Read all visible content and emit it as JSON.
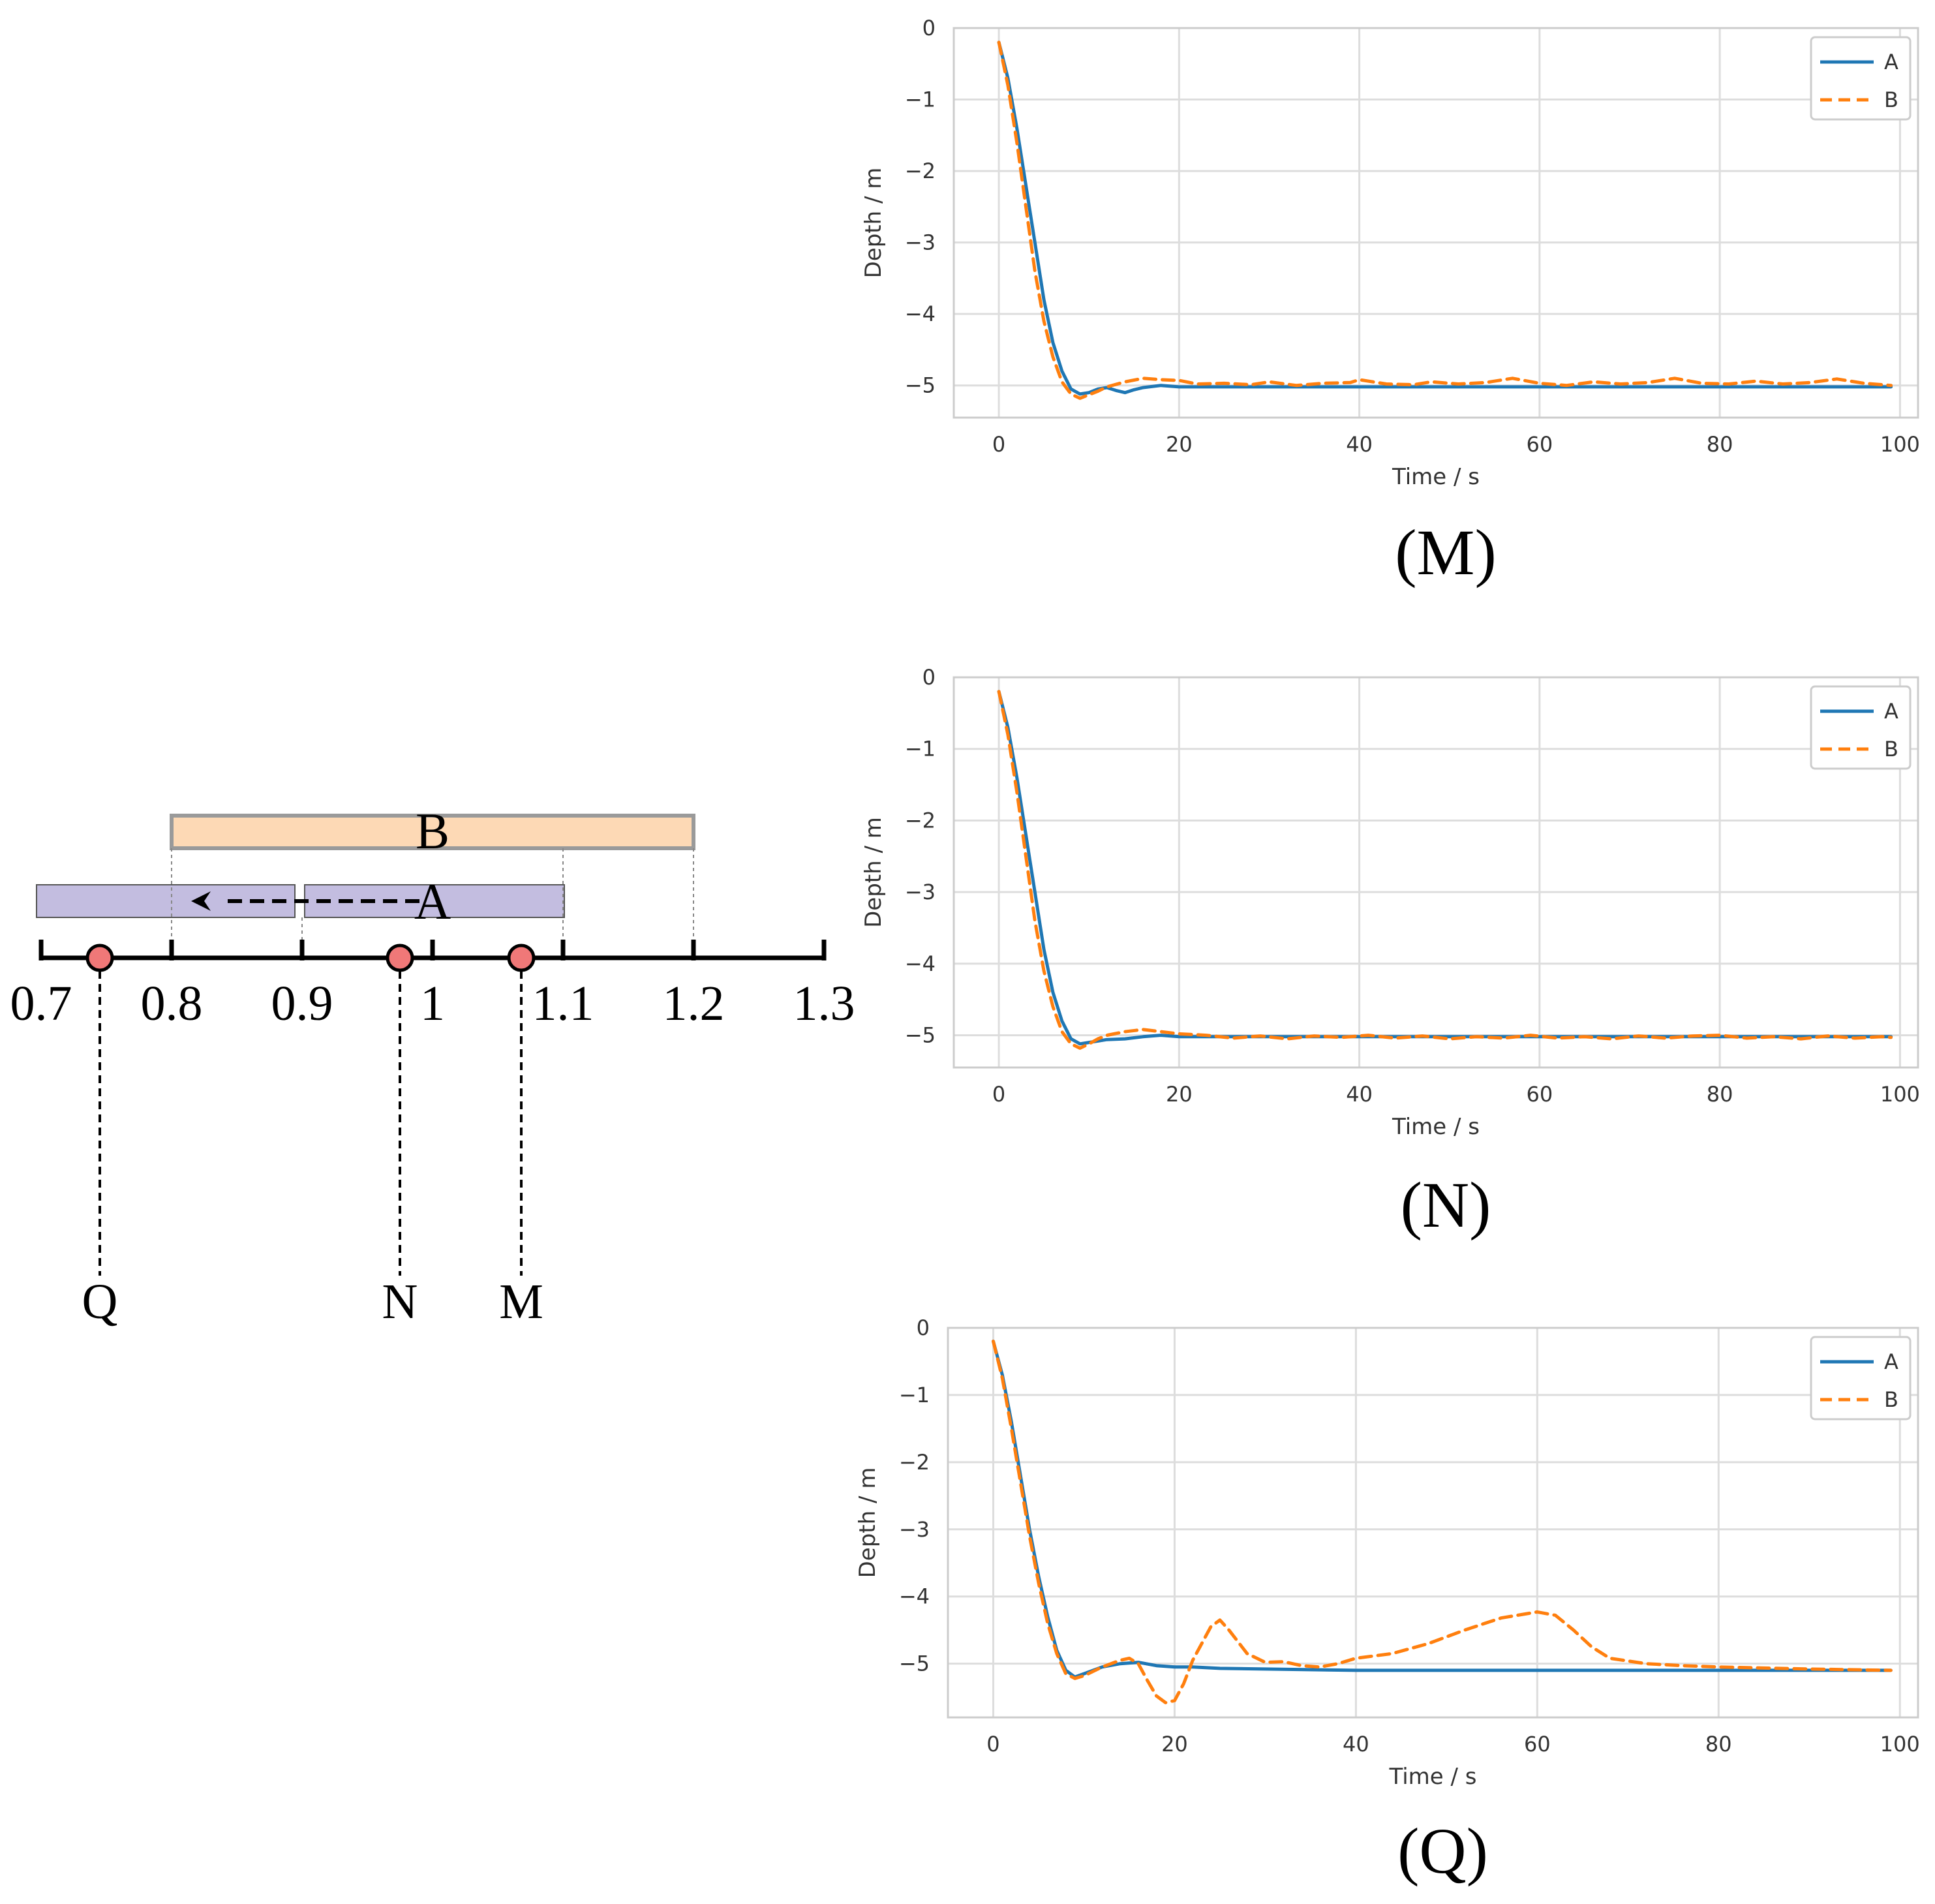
{
  "diagram": {
    "number_line": {
      "min": 0.7,
      "max": 1.3,
      "tick_values": [
        0.7,
        0.8,
        0.9,
        1,
        1.1,
        1.2,
        1.3
      ],
      "tick_labels": [
        "0.7",
        "0.8",
        "0.9",
        "1",
        "1.1",
        "1.2",
        "1.3"
      ]
    },
    "range_b": {
      "label": "B",
      "start": 0.8,
      "end": 1.2,
      "fill": "#fdd9b5",
      "stroke": "#9a9a9a"
    },
    "range_a_original": {
      "label": "A",
      "start": 0.9,
      "end": 1.1,
      "fill": "#c3bde0",
      "stroke": "#555555"
    },
    "range_a_shifted": {
      "start": 0.7,
      "end": 0.9,
      "fill": "#c3bde0",
      "stroke": "#555555"
    },
    "points": [
      {
        "label": "Q",
        "value": 0.745,
        "color": "#f07878"
      },
      {
        "label": "N",
        "value": 0.975,
        "color": "#f07878"
      },
      {
        "label": "M",
        "value": 1.068,
        "color": "#f07878"
      }
    ]
  },
  "chart_data": [
    {
      "type": "line",
      "caption": "(M)",
      "xlabel": "Time / s",
      "ylabel": "Depth / m",
      "xlim": [
        -5,
        102
      ],
      "ylim": [
        -5.45,
        0
      ],
      "xticks": [
        0,
        20,
        40,
        60,
        80,
        100
      ],
      "yticks": [
        0,
        -1,
        -2,
        -3,
        -4,
        -5
      ],
      "ytick_labels": [
        "0",
        "−1",
        "−2",
        "−3",
        "−4",
        "−5"
      ],
      "grid": true,
      "legend": "top-right",
      "series": [
        {
          "name": "A",
          "color": "#1f77b4",
          "dash": "solid",
          "points": [
            [
              0,
              -0.2
            ],
            [
              1,
              -0.7
            ],
            [
              2,
              -1.4
            ],
            [
              3,
              -2.2
            ],
            [
              4,
              -3.0
            ],
            [
              5,
              -3.8
            ],
            [
              6,
              -4.4
            ],
            [
              7,
              -4.8
            ],
            [
              8,
              -5.05
            ],
            [
              9,
              -5.12
            ],
            [
              10,
              -5.1
            ],
            [
              11,
              -5.05
            ],
            [
              12,
              -5.03
            ],
            [
              13,
              -5.07
            ],
            [
              14,
              -5.1
            ],
            [
              15,
              -5.06
            ],
            [
              16,
              -5.03
            ],
            [
              18,
              -5.0
            ],
            [
              20,
              -5.02
            ],
            [
              30,
              -5.02
            ],
            [
              40,
              -5.02
            ],
            [
              60,
              -5.02
            ],
            [
              80,
              -5.02
            ],
            [
              99,
              -5.02
            ]
          ]
        },
        {
          "name": "B",
          "color": "#ff7f0e",
          "dash": "dashed",
          "points": [
            [
              0,
              -0.2
            ],
            [
              1,
              -0.8
            ],
            [
              2,
              -1.6
            ],
            [
              3,
              -2.5
            ],
            [
              4,
              -3.4
            ],
            [
              5,
              -4.1
            ],
            [
              6,
              -4.6
            ],
            [
              7,
              -4.95
            ],
            [
              8,
              -5.12
            ],
            [
              9,
              -5.18
            ],
            [
              10,
              -5.13
            ],
            [
              11,
              -5.08
            ],
            [
              12,
              -5.02
            ],
            [
              14,
              -4.95
            ],
            [
              16,
              -4.9
            ],
            [
              18,
              -4.92
            ],
            [
              20,
              -4.93
            ],
            [
              22,
              -4.98
            ],
            [
              25,
              -4.97
            ],
            [
              28,
              -4.99
            ],
            [
              30,
              -4.95
            ],
            [
              33,
              -5.0
            ],
            [
              36,
              -4.97
            ],
            [
              39,
              -4.96
            ],
            [
              40,
              -4.92
            ],
            [
              43,
              -4.98
            ],
            [
              46,
              -4.99
            ],
            [
              48,
              -4.95
            ],
            [
              51,
              -4.98
            ],
            [
              54,
              -4.96
            ],
            [
              57,
              -4.9
            ],
            [
              60,
              -4.97
            ],
            [
              63,
              -5.0
            ],
            [
              66,
              -4.95
            ],
            [
              69,
              -4.98
            ],
            [
              72,
              -4.96
            ],
            [
              75,
              -4.9
            ],
            [
              78,
              -4.97
            ],
            [
              81,
              -4.98
            ],
            [
              84,
              -4.94
            ],
            [
              87,
              -4.98
            ],
            [
              90,
              -4.96
            ],
            [
              93,
              -4.91
            ],
            [
              96,
              -4.97
            ],
            [
              99,
              -5.0
            ]
          ]
        }
      ]
    },
    {
      "type": "line",
      "caption": "(N)",
      "xlabel": "Time / s",
      "ylabel": "Depth / m",
      "xlim": [
        -5,
        102
      ],
      "ylim": [
        -5.45,
        0
      ],
      "xticks": [
        0,
        20,
        40,
        60,
        80,
        100
      ],
      "yticks": [
        0,
        -1,
        -2,
        -3,
        -4,
        -5
      ],
      "ytick_labels": [
        "0",
        "−1",
        "−2",
        "−3",
        "−4",
        "−5"
      ],
      "grid": true,
      "legend": "top-right",
      "series": [
        {
          "name": "A",
          "color": "#1f77b4",
          "dash": "solid",
          "points": [
            [
              0,
              -0.2
            ],
            [
              1,
              -0.7
            ],
            [
              2,
              -1.4
            ],
            [
              3,
              -2.2
            ],
            [
              4,
              -3.0
            ],
            [
              5,
              -3.8
            ],
            [
              6,
              -4.4
            ],
            [
              7,
              -4.8
            ],
            [
              8,
              -5.05
            ],
            [
              9,
              -5.12
            ],
            [
              10,
              -5.1
            ],
            [
              12,
              -5.06
            ],
            [
              14,
              -5.05
            ],
            [
              16,
              -5.02
            ],
            [
              18,
              -5.0
            ],
            [
              20,
              -5.02
            ],
            [
              30,
              -5.02
            ],
            [
              40,
              -5.02
            ],
            [
              60,
              -5.02
            ],
            [
              80,
              -5.02
            ],
            [
              99,
              -5.02
            ]
          ]
        },
        {
          "name": "B",
          "color": "#ff7f0e",
          "dash": "dashed",
          "points": [
            [
              0,
              -0.2
            ],
            [
              1,
              -0.8
            ],
            [
              2,
              -1.6
            ],
            [
              3,
              -2.5
            ],
            [
              4,
              -3.4
            ],
            [
              5,
              -4.1
            ],
            [
              6,
              -4.6
            ],
            [
              7,
              -4.95
            ],
            [
              8,
              -5.12
            ],
            [
              9,
              -5.18
            ],
            [
              10,
              -5.12
            ],
            [
              11,
              -5.05
            ],
            [
              12,
              -5.0
            ],
            [
              14,
              -4.95
            ],
            [
              16,
              -4.92
            ],
            [
              18,
              -4.95
            ],
            [
              20,
              -4.98
            ],
            [
              23,
              -5.0
            ],
            [
              26,
              -5.04
            ],
            [
              29,
              -5.01
            ],
            [
              32,
              -5.05
            ],
            [
              35,
              -5.01
            ],
            [
              38,
              -5.03
            ],
            [
              41,
              -5.0
            ],
            [
              44,
              -5.04
            ],
            [
              47,
              -5.01
            ],
            [
              50,
              -5.05
            ],
            [
              53,
              -5.02
            ],
            [
              56,
              -5.04
            ],
            [
              59,
              -5.0
            ],
            [
              62,
              -5.04
            ],
            [
              65,
              -5.02
            ],
            [
              68,
              -5.05
            ],
            [
              71,
              -5.01
            ],
            [
              74,
              -5.04
            ],
            [
              77,
              -5.01
            ],
            [
              80,
              -5.0
            ],
            [
              83,
              -5.04
            ],
            [
              86,
              -5.02
            ],
            [
              89,
              -5.05
            ],
            [
              92,
              -5.01
            ],
            [
              95,
              -5.04
            ],
            [
              98,
              -5.02
            ],
            [
              99,
              -5.03
            ]
          ]
        }
      ]
    },
    {
      "type": "line",
      "caption": "(Q)",
      "xlabel": "Time / s",
      "ylabel": "Depth / m",
      "xlim": [
        -5,
        102
      ],
      "ylim": [
        -5.8,
        0
      ],
      "xticks": [
        0,
        20,
        40,
        60,
        80,
        100
      ],
      "yticks": [
        0,
        -1,
        -2,
        -3,
        -4,
        -5
      ],
      "ytick_labels": [
        "0",
        "−1",
        "−2",
        "−3",
        "−4",
        "−5"
      ],
      "grid": true,
      "legend": "top-right",
      "series": [
        {
          "name": "A",
          "color": "#1f77b4",
          "dash": "solid",
          "points": [
            [
              0,
              -0.2
            ],
            [
              1,
              -0.7
            ],
            [
              2,
              -1.4
            ],
            [
              3,
              -2.2
            ],
            [
              4,
              -3.0
            ],
            [
              5,
              -3.7
            ],
            [
              6,
              -4.3
            ],
            [
              7,
              -4.8
            ],
            [
              8,
              -5.1
            ],
            [
              9,
              -5.2
            ],
            [
              10,
              -5.15
            ],
            [
              12,
              -5.05
            ],
            [
              14,
              -5.0
            ],
            [
              16,
              -4.98
            ],
            [
              18,
              -5.03
            ],
            [
              20,
              -5.05
            ],
            [
              22,
              -5.05
            ],
            [
              25,
              -5.07
            ],
            [
              30,
              -5.08
            ],
            [
              40,
              -5.1
            ],
            [
              60,
              -5.1
            ],
            [
              80,
              -5.1
            ],
            [
              99,
              -5.1
            ]
          ]
        },
        {
          "name": "B",
          "color": "#ff7f0e",
          "dash": "dashed",
          "points": [
            [
              0,
              -0.2
            ],
            [
              1,
              -0.75
            ],
            [
              2,
              -1.5
            ],
            [
              3,
              -2.3
            ],
            [
              4,
              -3.1
            ],
            [
              5,
              -3.8
            ],
            [
              6,
              -4.4
            ],
            [
              7,
              -4.85
            ],
            [
              8,
              -5.15
            ],
            [
              9,
              -5.22
            ],
            [
              10,
              -5.18
            ],
            [
              12,
              -5.05
            ],
            [
              14,
              -4.95
            ],
            [
              15,
              -4.92
            ],
            [
              16,
              -5.0
            ],
            [
              17,
              -5.25
            ],
            [
              18,
              -5.48
            ],
            [
              19,
              -5.58
            ],
            [
              20,
              -5.55
            ],
            [
              21,
              -5.3
            ],
            [
              22,
              -4.95
            ],
            [
              24,
              -4.45
            ],
            [
              25,
              -4.35
            ],
            [
              26,
              -4.5
            ],
            [
              28,
              -4.85
            ],
            [
              30,
              -4.98
            ],
            [
              32,
              -4.97
            ],
            [
              34,
              -5.03
            ],
            [
              36,
              -5.05
            ],
            [
              38,
              -5.0
            ],
            [
              40,
              -4.92
            ],
            [
              44,
              -4.85
            ],
            [
              48,
              -4.7
            ],
            [
              52,
              -4.5
            ],
            [
              56,
              -4.32
            ],
            [
              60,
              -4.23
            ],
            [
              62,
              -4.28
            ],
            [
              64,
              -4.5
            ],
            [
              66,
              -4.75
            ],
            [
              68,
              -4.92
            ],
            [
              72,
              -5.0
            ],
            [
              76,
              -5.03
            ],
            [
              80,
              -5.05
            ],
            [
              90,
              -5.08
            ],
            [
              99,
              -5.1
            ]
          ]
        }
      ]
    }
  ]
}
